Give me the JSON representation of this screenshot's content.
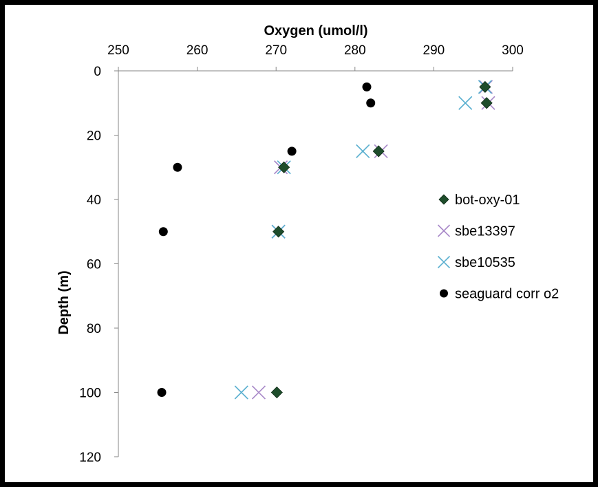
{
  "chart_data": {
    "type": "scatter",
    "title": "",
    "xlabel": "Oxygen (umol/l)",
    "ylabel": "Depth (m)",
    "xlim": [
      250,
      300
    ],
    "ylim": [
      0,
      120
    ],
    "y_inverted": true,
    "x_axis_position": "top",
    "x_ticks": [
      "250",
      "260",
      "270",
      "280",
      "290",
      "300"
    ],
    "y_ticks": [
      "0",
      "20",
      "40",
      "60",
      "80",
      "100",
      "120"
    ],
    "grid": false,
    "legend_position": "right",
    "series": [
      {
        "name": "bot-oxy-01",
        "marker": "diamond",
        "color": "#1e4d2b",
        "points": [
          {
            "x": 296.5,
            "y": 5
          },
          {
            "x": 296.7,
            "y": 10
          },
          {
            "x": 283.0,
            "y": 25
          },
          {
            "x": 271.0,
            "y": 30
          },
          {
            "x": 270.3,
            "y": 50
          },
          {
            "x": 270.1,
            "y": 100
          }
        ]
      },
      {
        "name": "sbe13397",
        "marker": "x",
        "color": "#a98ac9",
        "points": [
          {
            "x": 296.6,
            "y": 5
          },
          {
            "x": 296.9,
            "y": 10
          },
          {
            "x": 283.3,
            "y": 25
          },
          {
            "x": 270.6,
            "y": 30
          },
          {
            "x": 270.3,
            "y": 50
          },
          {
            "x": 267.8,
            "y": 100
          }
        ]
      },
      {
        "name": "sbe10535",
        "marker": "x",
        "color": "#5bb0d0",
        "points": [
          {
            "x": 296.5,
            "y": 5
          },
          {
            "x": 294.0,
            "y": 10
          },
          {
            "x": 281.0,
            "y": 25
          },
          {
            "x": 271.0,
            "y": 30
          },
          {
            "x": 270.3,
            "y": 50
          },
          {
            "x": 265.6,
            "y": 100
          }
        ]
      },
      {
        "name": "seaguard corr o2",
        "marker": "circle",
        "color": "#000000",
        "points": [
          {
            "x": 281.5,
            "y": 5
          },
          {
            "x": 282.0,
            "y": 10
          },
          {
            "x": 272.0,
            "y": 25
          },
          {
            "x": 257.5,
            "y": 30
          },
          {
            "x": 255.7,
            "y": 50
          },
          {
            "x": 255.5,
            "y": 100
          }
        ]
      }
    ]
  }
}
